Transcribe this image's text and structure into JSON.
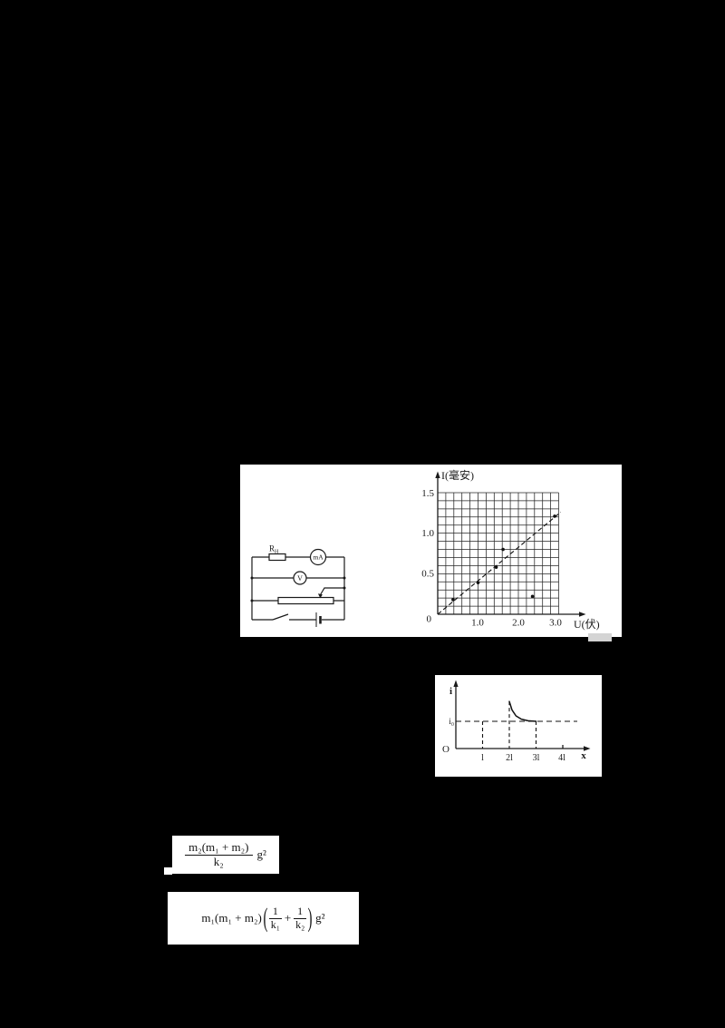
{
  "page": {
    "background": "#000000",
    "panel_background": "#ffffff",
    "ink": "#1a1a1a",
    "artifact_gray": "#d4d4d4"
  },
  "circuit": {
    "resistor_label_main": "R",
    "resistor_label_sub": "H",
    "ammeter_label": "mA",
    "voltmeter_label": "V"
  },
  "chart_data": [
    {
      "type": "scatter",
      "xlabel": "U(伏)",
      "ylabel": "I(毫安)",
      "x_tick_labels": [
        "0",
        "1.0",
        "2.0",
        "3.0"
      ],
      "y_tick_labels": [
        "0.5",
        "1.0",
        "1.5"
      ],
      "xlim": [
        0,
        3.2
      ],
      "ylim": [
        0,
        1.5
      ],
      "grid": {
        "x_max": 3.0,
        "y_max": 1.5,
        "minor_x_step": 0.2,
        "minor_y_step": 0.1
      },
      "points": [
        [
          0.38,
          0.18
        ],
        [
          1.0,
          0.39
        ],
        [
          1.45,
          0.58
        ],
        [
          1.62,
          0.8
        ],
        [
          2.35,
          0.22
        ],
        [
          2.9,
          1.21
        ]
      ],
      "fit_line": {
        "x1": 0,
        "y1": 0,
        "x2": 3.05,
        "y2": 1.26,
        "style": "dashed"
      }
    },
    {
      "type": "line",
      "xlabel": "x",
      "ylabel": "i",
      "origin_label": "O",
      "x_tick_labels": [
        "l",
        "2l",
        "3l",
        "4l"
      ],
      "reference_label": "i₀",
      "reference_level": 1.0,
      "dashed_verticals": [
        {
          "x": 1,
          "top": 1.0
        },
        {
          "x": 2,
          "top": 1.73
        },
        {
          "x": 3,
          "top": 1.0
        }
      ],
      "curve_points": [
        [
          2,
          1.73
        ],
        [
          2.1,
          1.42
        ],
        [
          2.25,
          1.2
        ],
        [
          2.45,
          1.08
        ],
        [
          2.7,
          1.02
        ],
        [
          3,
          1.0
        ]
      ]
    }
  ],
  "formulas": {
    "f1": {
      "numerator": "m₂(m₁ + m₂)",
      "denominator": "k₂",
      "factor": "g²"
    },
    "f2": {
      "prefix": "m₁(m₁ + m₂)",
      "paren_open": "(",
      "frac1_num": "1",
      "frac1_den": "k₁",
      "plus": "+",
      "frac2_num": "1",
      "frac2_den": "k₂",
      "paren_close": ")",
      "suffix": "g²"
    }
  }
}
